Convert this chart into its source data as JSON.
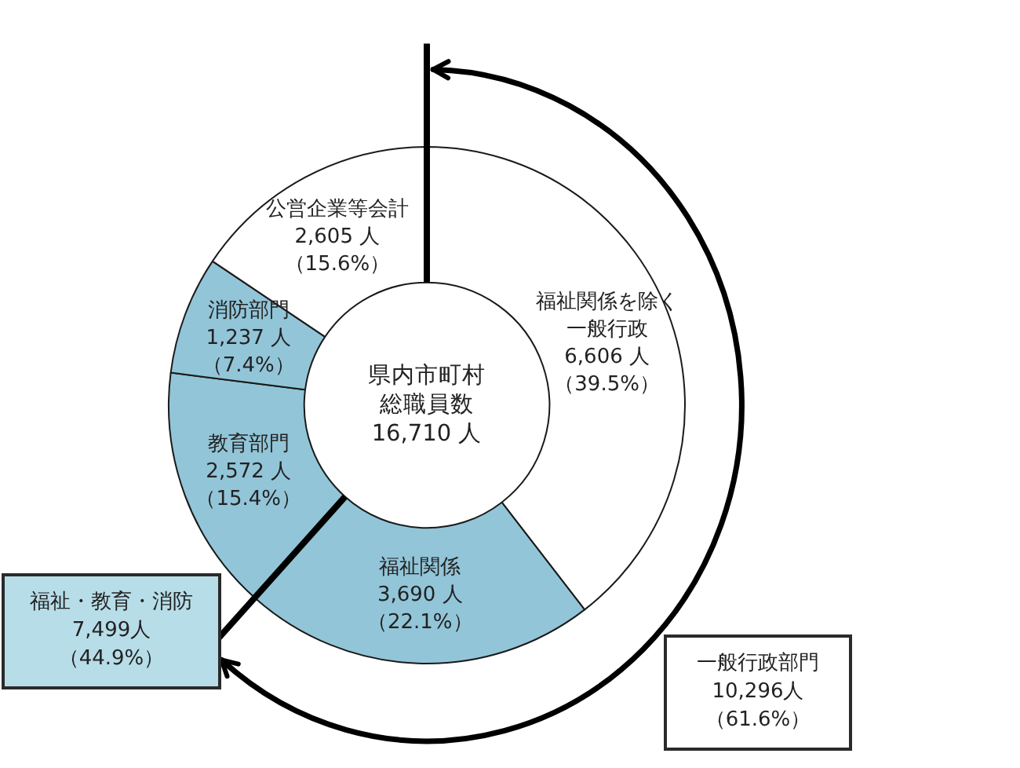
{
  "chart_data": {
    "type": "donut",
    "title": "県内市町村総職員数",
    "subtitle": "16,710 人",
    "categories": [
      "福祉関係を除く一般行政",
      "福祉関係",
      "教育部門",
      "消防部門",
      "公営企業等会計"
    ],
    "values": [
      6606,
      3690,
      2572,
      1237,
      2605
    ],
    "colors": [
      "#ffffff",
      "#92c5d8",
      "#92c5d8",
      "#92c5d8",
      "#ffffff"
    ],
    "value_labels": [
      "6,606 人（39.5%）",
      "3,690 人（22.1%）",
      "2,572 人（15.4%）",
      "1,237 人（7.4%）",
      "2,605 人（15.6%）"
    ],
    "annotations": [
      "福祉・教育・消防7,499人（44.9%）",
      "一般行政部門10,296人（61.6%）"
    ]
  }
}
